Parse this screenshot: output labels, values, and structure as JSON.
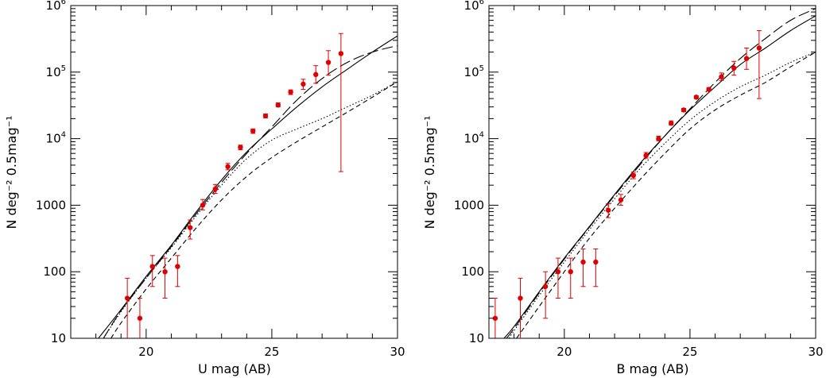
{
  "colors": {
    "data": "#e00000",
    "model": "#000000"
  },
  "chart_data": [
    {
      "type": "scatter",
      "xlabel": "U mag (AB)",
      "ylabel": "N deg⁻² 0.5mag⁻¹",
      "xlim": [
        17,
        30
      ],
      "ylim": [
        10,
        1000000
      ],
      "yscale": "log",
      "x_ticks": [
        {
          "v": 20,
          "label": "20"
        },
        {
          "v": 25,
          "label": "25"
        },
        {
          "v": 30,
          "label": "30"
        }
      ],
      "y_ticks": [
        {
          "v": 10,
          "label": "10"
        },
        {
          "v": 100,
          "label": "100"
        },
        {
          "v": 1000,
          "label": "1000"
        },
        {
          "v": 10000,
          "base": "10",
          "exp": "4"
        },
        {
          "v": 100000,
          "base": "10",
          "exp": "5"
        },
        {
          "v": 1000000,
          "base": "10",
          "exp": "6"
        }
      ],
      "points": [
        {
          "x": 19.25,
          "y": 40,
          "lo": 10,
          "hi": 80
        },
        {
          "x": 19.75,
          "y": 20,
          "lo": 10,
          "hi": 40
        },
        {
          "x": 20.25,
          "y": 120,
          "lo": 60,
          "hi": 175
        },
        {
          "x": 20.75,
          "y": 100,
          "lo": 40,
          "hi": 160
        },
        {
          "x": 21.25,
          "y": 120,
          "lo": 60,
          "hi": 175
        },
        {
          "x": 21.75,
          "y": 460,
          "lo": 310,
          "hi": 600
        },
        {
          "x": 22.25,
          "y": 1000,
          "lo": 850,
          "hi": 1220
        },
        {
          "x": 22.75,
          "y": 1750,
          "lo": 1500,
          "hi": 2050
        },
        {
          "x": 23.25,
          "y": 3800,
          "lo": 3400,
          "hi": 4250
        },
        {
          "x": 23.75,
          "y": 7400,
          "lo": 6800,
          "hi": 8000
        },
        {
          "x": 24.25,
          "y": 13000,
          "lo": 12000,
          "hi": 14000
        },
        {
          "x": 24.75,
          "y": 22000,
          "lo": 20500,
          "hi": 23500
        },
        {
          "x": 25.25,
          "y": 32000,
          "lo": 30000,
          "hi": 34500
        },
        {
          "x": 25.75,
          "y": 50000,
          "lo": 46000,
          "hi": 54000
        },
        {
          "x": 26.25,
          "y": 66000,
          "lo": 55000,
          "hi": 78000
        },
        {
          "x": 26.75,
          "y": 92000,
          "lo": 68000,
          "hi": 125000
        },
        {
          "x": 27.25,
          "y": 140000,
          "lo": 90000,
          "hi": 210000
        },
        {
          "x": 27.75,
          "y": 190000,
          "lo": 3200,
          "hi": 380000
        }
      ],
      "models": [
        {
          "dash": "solid",
          "x": [
            18.1,
            19,
            20,
            21,
            22,
            23,
            24,
            25,
            26,
            27,
            28,
            29,
            30
          ],
          "y": [
            10,
            27,
            85,
            250,
            800,
            2400,
            6300,
            14000,
            30000,
            60000,
            110000,
            200000,
            350000
          ]
        },
        {
          "dash": "longdash",
          "x": [
            18.3,
            19,
            20,
            21,
            22,
            23,
            24,
            25,
            26,
            27,
            28,
            29,
            30
          ],
          "y": [
            10,
            26,
            80,
            240,
            750,
            2200,
            6000,
            15000,
            38000,
            80000,
            140000,
            200000,
            250000
          ]
        },
        {
          "dash": "dotted",
          "x": [
            18.3,
            19,
            20,
            21,
            22,
            23,
            24,
            25,
            26,
            27,
            28,
            29,
            30
          ],
          "y": [
            10,
            25,
            80,
            230,
            700,
            2000,
            5000,
            9500,
            14000,
            20000,
            30000,
            45000,
            72000
          ]
        },
        {
          "dash": "dashed",
          "x": [
            18.6,
            19,
            20,
            21,
            22,
            23,
            24,
            25,
            26,
            27,
            28,
            29,
            30
          ],
          "y": [
            10,
            17,
            55,
            160,
            460,
            1200,
            2700,
            5200,
            9000,
            15000,
            25000,
            42000,
            72000
          ]
        }
      ]
    },
    {
      "type": "scatter",
      "xlabel": "B mag (AB)",
      "ylabel": "N deg⁻² 0.5mag⁻¹",
      "xlim": [
        17,
        30
      ],
      "ylim": [
        10,
        1000000
      ],
      "yscale": "log",
      "x_ticks": [
        {
          "v": 20,
          "label": "20"
        },
        {
          "v": 25,
          "label": "25"
        },
        {
          "v": 30,
          "label": "30"
        }
      ],
      "y_ticks": [
        {
          "v": 10,
          "label": "10"
        },
        {
          "v": 100,
          "label": "100"
        },
        {
          "v": 1000,
          "label": "1000"
        },
        {
          "v": 10000,
          "base": "10",
          "exp": "4"
        },
        {
          "v": 100000,
          "base": "10",
          "exp": "5"
        },
        {
          "v": 1000000,
          "base": "10",
          "exp": "6"
        }
      ],
      "points": [
        {
          "x": 17.25,
          "y": 20,
          "lo": 10,
          "hi": 40
        },
        {
          "x": 18.25,
          "y": 40,
          "lo": 10,
          "hi": 80
        },
        {
          "x": 19.25,
          "y": 60,
          "lo": 20,
          "hi": 100
        },
        {
          "x": 19.75,
          "y": 100,
          "lo": 40,
          "hi": 160
        },
        {
          "x": 20.25,
          "y": 100,
          "lo": 40,
          "hi": 160
        },
        {
          "x": 20.75,
          "y": 140,
          "lo": 60,
          "hi": 220
        },
        {
          "x": 21.25,
          "y": 140,
          "lo": 60,
          "hi": 220
        },
        {
          "x": 21.75,
          "y": 840,
          "lo": 650,
          "hi": 1050
        },
        {
          "x": 22.25,
          "y": 1200,
          "lo": 1000,
          "hi": 1450
        },
        {
          "x": 22.75,
          "y": 2800,
          "lo": 2500,
          "hi": 3150
        },
        {
          "x": 23.25,
          "y": 5600,
          "lo": 5100,
          "hi": 6200
        },
        {
          "x": 23.75,
          "y": 10000,
          "lo": 9300,
          "hi": 10900
        },
        {
          "x": 24.25,
          "y": 17000,
          "lo": 16000,
          "hi": 18500
        },
        {
          "x": 24.75,
          "y": 27000,
          "lo": 25500,
          "hi": 28500
        },
        {
          "x": 25.25,
          "y": 42000,
          "lo": 40000,
          "hi": 44000
        },
        {
          "x": 25.75,
          "y": 55000,
          "lo": 52000,
          "hi": 58500
        },
        {
          "x": 26.25,
          "y": 85000,
          "lo": 75000,
          "hi": 97000
        },
        {
          "x": 26.75,
          "y": 115000,
          "lo": 90000,
          "hi": 145000
        },
        {
          "x": 27.25,
          "y": 160000,
          "lo": 110000,
          "hi": 230000
        },
        {
          "x": 27.75,
          "y": 230000,
          "lo": 40000,
          "hi": 420000
        }
      ],
      "models": [
        {
          "dash": "solid",
          "x": [
            17.6,
            18,
            19,
            20,
            21,
            22,
            23,
            24,
            25,
            26,
            27,
            28,
            29,
            30
          ],
          "y": [
            10,
            15,
            50,
            160,
            480,
            1450,
            4200,
            11000,
            27000,
            60000,
            130000,
            230000,
            420000,
            700000
          ]
        },
        {
          "dash": "longdash",
          "x": [
            17.7,
            18,
            19,
            20,
            21,
            22,
            23,
            24,
            25,
            26,
            27,
            28,
            29,
            30
          ],
          "y": [
            10,
            14,
            48,
            155,
            470,
            1400,
            4000,
            11000,
            28000,
            70000,
            160000,
            320000,
            600000,
            900000
          ]
        },
        {
          "dash": "dotted",
          "x": [
            17.8,
            18,
            19,
            20,
            21,
            22,
            23,
            24,
            25,
            26,
            27,
            28,
            29,
            30
          ],
          "y": [
            10,
            13,
            44,
            140,
            430,
            1250,
            3500,
            8500,
            19000,
            36000,
            60000,
            90000,
            140000,
            200000
          ]
        },
        {
          "dash": "dashed",
          "x": [
            18.1,
            19,
            20,
            21,
            22,
            23,
            24,
            25,
            26,
            27,
            28,
            29,
            30
          ],
          "y": [
            10,
            30,
            100,
            320,
            900,
            2400,
            6000,
            14000,
            27000,
            45000,
            70000,
            120000,
            200000
          ]
        }
      ]
    }
  ]
}
